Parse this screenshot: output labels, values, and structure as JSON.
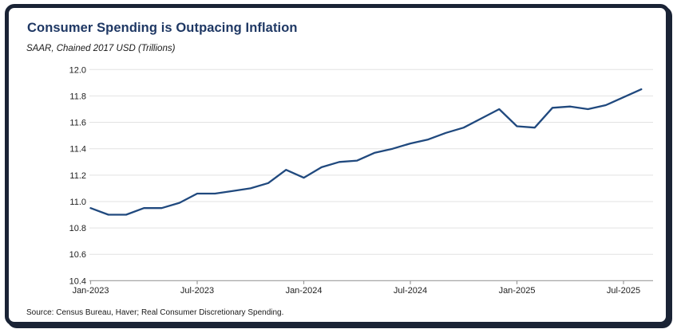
{
  "header": {
    "title": "Consumer Spending is Outpacing Inflation",
    "subtitle": "SAAR, Chained 2017 USD (Trillions)"
  },
  "footer": {
    "source": "Source: Census Bureau, Haver; Real Consumer Discretionary Spending."
  },
  "chart_data": {
    "type": "line",
    "title": "Consumer Spending is Outpacing Inflation",
    "subtitle": "SAAR, Chained 2017 USD (Trillions)",
    "x": [
      "Jan-2023",
      "Feb-2023",
      "Mar-2023",
      "Apr-2023",
      "May-2023",
      "Jun-2023",
      "Jul-2023",
      "Aug-2023",
      "Sep-2023",
      "Oct-2023",
      "Nov-2023",
      "Dec-2023",
      "Jan-2024",
      "Feb-2024",
      "Mar-2024",
      "Apr-2024",
      "May-2024",
      "Jun-2024",
      "Jul-2024",
      "Aug-2024",
      "Sep-2024",
      "Oct-2024",
      "Nov-2024",
      "Dec-2024",
      "Jan-2025",
      "Feb-2025",
      "Mar-2025",
      "Apr-2025",
      "May-2025",
      "Jun-2025",
      "Jul-2025",
      "Aug-2025"
    ],
    "series": [
      {
        "name": "Real Consumer Discretionary Spending",
        "values": [
          10.95,
          10.9,
          10.9,
          10.95,
          10.95,
          10.99,
          11.06,
          11.06,
          11.08,
          11.1,
          11.14,
          11.24,
          11.18,
          11.26,
          11.3,
          11.31,
          11.37,
          11.4,
          11.44,
          11.47,
          11.52,
          11.56,
          11.63,
          11.7,
          11.57,
          11.56,
          11.71,
          11.72,
          11.7,
          11.73,
          11.79,
          11.85
        ]
      }
    ],
    "ylim": [
      10.4,
      12.0
    ],
    "yticks": [
      12.0,
      11.8,
      11.6,
      11.4,
      11.2,
      11.0,
      10.8,
      10.6,
      10.4
    ],
    "xticks": [
      {
        "index": 0,
        "label": "Jan-2023"
      },
      {
        "index": 6,
        "label": "Jul-2023"
      },
      {
        "index": 12,
        "label": "Jan-2024"
      },
      {
        "index": 18,
        "label": "Jul-2024"
      },
      {
        "index": 24,
        "label": "Jan-2025"
      },
      {
        "index": 30,
        "label": "Jul-2025"
      }
    ],
    "grid": "horizontal",
    "legend": "none",
    "colors": {
      "line": "#20497e",
      "title": "#1f3864",
      "grid": "#e2e2e2",
      "axis": "#9b9b9b",
      "frame": "#1a2335",
      "text": "#1a1a1a"
    }
  }
}
